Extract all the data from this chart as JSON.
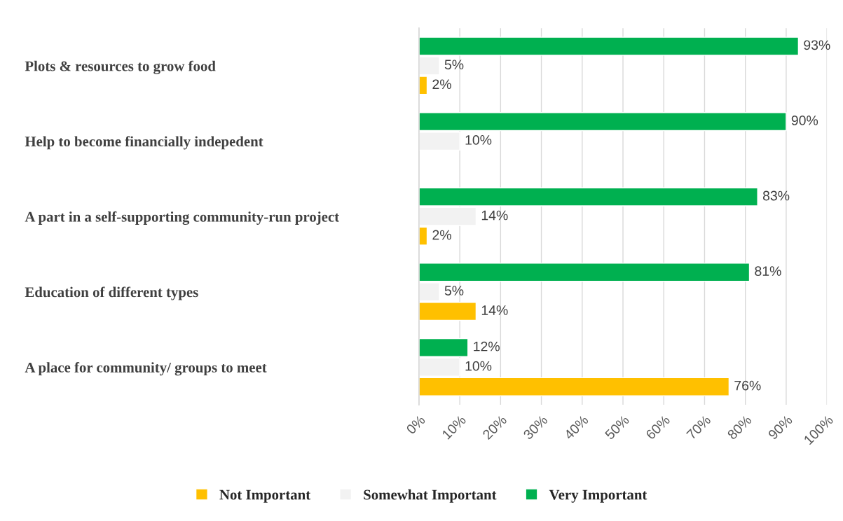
{
  "chart_data": {
    "type": "bar",
    "orientation": "horizontal",
    "categories": [
      "Plots & resources to grow food",
      "Help to become financially indepedent",
      "A part in a self-supporting community-run project",
      "Education of different types",
      "A place for community/ groups to meet"
    ],
    "series": [
      {
        "name": "Not Important",
        "color": "#ffc000",
        "values": [
          2,
          null,
          2,
          14,
          76
        ],
        "value_labels": [
          "2%",
          null,
          "2%",
          "14%",
          "76%"
        ]
      },
      {
        "name": "Somewhat Important",
        "color": "#f2f2f2",
        "values": [
          5,
          10,
          14,
          5,
          10
        ],
        "value_labels": [
          "5%",
          "10%",
          "14%",
          "5%",
          "10%"
        ]
      },
      {
        "name": "Very Important",
        "color": "#00b050",
        "values": [
          93,
          90,
          83,
          81,
          12
        ],
        "value_labels": [
          "93%",
          "90%",
          "83%",
          "81%",
          "12%"
        ]
      }
    ],
    "xlim": [
      0,
      100
    ],
    "xticks": [
      {
        "value": 0,
        "label": "0%"
      },
      {
        "value": 10,
        "label": "10%"
      },
      {
        "value": 20,
        "label": "20%"
      },
      {
        "value": 30,
        "label": "30%"
      },
      {
        "value": 40,
        "label": "40%"
      },
      {
        "value": 50,
        "label": "50%"
      },
      {
        "value": 60,
        "label": "60%"
      },
      {
        "value": 70,
        "label": "70%"
      },
      {
        "value": 80,
        "label": "80%"
      },
      {
        "value": 90,
        "label": "90%"
      },
      {
        "value": 100,
        "label": "100%"
      }
    ],
    "grid": "x",
    "legend": "bottom"
  }
}
